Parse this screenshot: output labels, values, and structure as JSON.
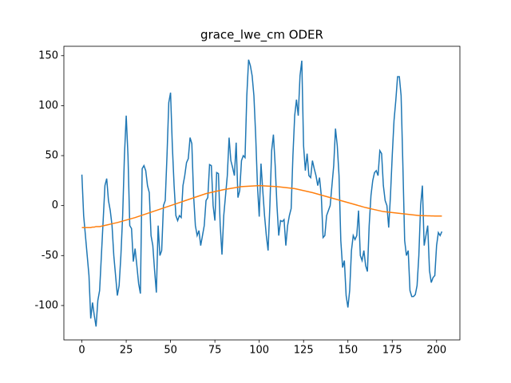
{
  "chart_data": {
    "type": "line",
    "title": "grace_lwe_cm ODER",
    "x": [
      0,
      1,
      2,
      3,
      4,
      5,
      6,
      7,
      8,
      9,
      10,
      11,
      12,
      13,
      14,
      15,
      16,
      17,
      18,
      19,
      20,
      21,
      22,
      23,
      24,
      25,
      26,
      27,
      28,
      29,
      30,
      31,
      32,
      33,
      34,
      35,
      36,
      37,
      38,
      39,
      40,
      41,
      42,
      43,
      44,
      45,
      46,
      47,
      48,
      49,
      50,
      51,
      52,
      53,
      54,
      55,
      56,
      57,
      58,
      59,
      60,
      61,
      62,
      63,
      64,
      65,
      66,
      67,
      68,
      69,
      70,
      71,
      72,
      73,
      74,
      75,
      76,
      77,
      78,
      79,
      80,
      81,
      82,
      83,
      84,
      85,
      86,
      87,
      88,
      89,
      90,
      91,
      92,
      93,
      94,
      95,
      96,
      97,
      98,
      99,
      100,
      101,
      102,
      103,
      104,
      105,
      106,
      107,
      108,
      109,
      110,
      111,
      112,
      113,
      114,
      115,
      116,
      117,
      118,
      119,
      120,
      121,
      122,
      123,
      124,
      125,
      126,
      127,
      128,
      129,
      130,
      131,
      132,
      133,
      134,
      135,
      136,
      137,
      138,
      139,
      140,
      141,
      142,
      143,
      144,
      145,
      146,
      147,
      148,
      149,
      150,
      151,
      152,
      153,
      154,
      155,
      156,
      157,
      158,
      159,
      160,
      161,
      162,
      163,
      164,
      165,
      166,
      167,
      168,
      169,
      170,
      171,
      172,
      173,
      174,
      175,
      176,
      177,
      178,
      179,
      180,
      181,
      182,
      183,
      184,
      185,
      186,
      187,
      188,
      189,
      190,
      191,
      192,
      193,
      194,
      195,
      196,
      197,
      198,
      199,
      200,
      201,
      202,
      203
    ],
    "series": [
      {
        "color": "#1f77b4",
        "values": [
          31,
          -10,
          -30,
          -50,
          -70,
          -113,
          -97,
          -110,
          -121,
          -95,
          -85,
          -50,
          -15,
          20,
          27,
          5,
          -5,
          -20,
          -50,
          -70,
          -90,
          -80,
          -50,
          -10,
          50,
          90,
          50,
          -20,
          -23,
          -56,
          -43,
          -60,
          -78,
          -88,
          37,
          40,
          35,
          20,
          13,
          -30,
          -40,
          -65,
          -87,
          -20,
          -50,
          -45,
          0,
          5,
          50,
          103,
          113,
          60,
          20,
          -10,
          -15,
          -10,
          -12,
          20,
          30,
          43,
          47,
          68,
          62,
          10,
          -20,
          -30,
          -25,
          -40,
          -30,
          -20,
          5,
          8,
          41,
          40,
          0,
          -15,
          33,
          32,
          -20,
          -49,
          -10,
          10,
          30,
          68,
          45,
          38,
          30,
          63,
          8,
          15,
          45,
          50,
          48,
          110,
          146,
          140,
          130,
          110,
          70,
          20,
          -11,
          42,
          15,
          -10,
          -30,
          -45,
          0,
          55,
          71,
          40,
          0,
          -30,
          -15,
          -16,
          -14,
          -40,
          -20,
          -10,
          -3,
          50,
          90,
          106,
          90,
          130,
          145,
          60,
          35,
          52,
          30,
          28,
          45,
          37,
          30,
          20,
          28,
          10,
          -32,
          -30,
          -10,
          -5,
          0,
          20,
          40,
          77,
          60,
          30,
          -35,
          -62,
          -55,
          -90,
          -102,
          -85,
          -45,
          -30,
          -34,
          -30,
          -5,
          -50,
          -55,
          -45,
          -60,
          -66,
          -20,
          10,
          25,
          33,
          35,
          30,
          55,
          52,
          20,
          5,
          0,
          -22,
          10,
          50,
          85,
          105,
          129,
          129,
          110,
          40,
          -35,
          -50,
          -45,
          -85,
          -91,
          -91,
          -89,
          -80,
          -50,
          0,
          20,
          -40,
          -30,
          -20,
          -65,
          -77,
          -72,
          -70,
          -40,
          -27,
          -30,
          -26
        ]
      },
      {
        "color": "#ff7f0e",
        "values": [
          -22,
          -22,
          -22,
          -22,
          -22,
          -22,
          -21.5,
          -21.5,
          -21,
          -21,
          -21,
          -20.6,
          -20.2,
          -19.8,
          -19.4,
          -19,
          -18.6,
          -18.2,
          -17.8,
          -17.4,
          -17,
          -16.5,
          -16,
          -15.5,
          -15,
          -14.5,
          -14,
          -13.5,
          -13,
          -12.5,
          -12,
          -11.4,
          -10.8,
          -10.2,
          -9.6,
          -9,
          -8.4,
          -7.8,
          -7.2,
          -6.6,
          -6,
          -5.4,
          -4.8,
          -4.2,
          -3.6,
          -3,
          -2.4,
          -1.8,
          -1.2,
          -0.6,
          0,
          0.6,
          1.2,
          1.8,
          2.4,
          3,
          3.6,
          4.2,
          4.8,
          5.4,
          6,
          6.6,
          7.2,
          7.8,
          8.4,
          9,
          9.6,
          10.2,
          10.8,
          11.4,
          12,
          12.4,
          12.8,
          13.2,
          13.6,
          14,
          14.4,
          14.8,
          15.2,
          15.6,
          16,
          16.3,
          16.6,
          16.9,
          17.2,
          17.5,
          17.8,
          18.1,
          18.4,
          18.7,
          19,
          19.1,
          19.2,
          19.3,
          19.4,
          19.5,
          19.6,
          19.7,
          19.8,
          19.9,
          20,
          19.9,
          19.8,
          19.7,
          19.6,
          19.5,
          19.4,
          19.3,
          19.2,
          19.1,
          19,
          18.8,
          18.6,
          18.4,
          18.2,
          18,
          17.8,
          17.6,
          17.4,
          17.2,
          17,
          16.6,
          16.2,
          15.8,
          15.4,
          15,
          14.6,
          14.2,
          13.8,
          13.4,
          13,
          12.5,
          12,
          11.5,
          11,
          10.5,
          10,
          9.5,
          9,
          8.5,
          8,
          7.5,
          7,
          6.5,
          6,
          5.5,
          5,
          4.5,
          4,
          3.5,
          3,
          2.5,
          2,
          1.5,
          1,
          0.5,
          0,
          -0.5,
          -1,
          -1.5,
          -2,
          -2.4,
          -2.8,
          -3.2,
          -3.6,
          -4,
          -4.4,
          -4.8,
          -5.2,
          -5.6,
          -6,
          -6.2,
          -6.4,
          -6.6,
          -6.8,
          -7,
          -7.2,
          -7.4,
          -7.6,
          -7.8,
          -8,
          -8.2,
          -8.4,
          -8.6,
          -8.8,
          -9,
          -9.2,
          -9.4,
          -9.6,
          -9.8,
          -10,
          -10.1,
          -10.1,
          -10.2,
          -10.2,
          -10.3,
          -10.3,
          -10.4,
          -10.4,
          -10.5,
          -10.5,
          -10.5,
          -10.5,
          -10.5
        ]
      }
    ],
    "xlim": [
      -10.15,
      213.15
    ],
    "xticks": [
      0,
      25,
      50,
      75,
      100,
      125,
      150,
      175,
      200
    ],
    "ylim": [
      -134.4,
      159.4
    ],
    "yticks": [
      -100,
      -50,
      0,
      50,
      100,
      150
    ]
  }
}
